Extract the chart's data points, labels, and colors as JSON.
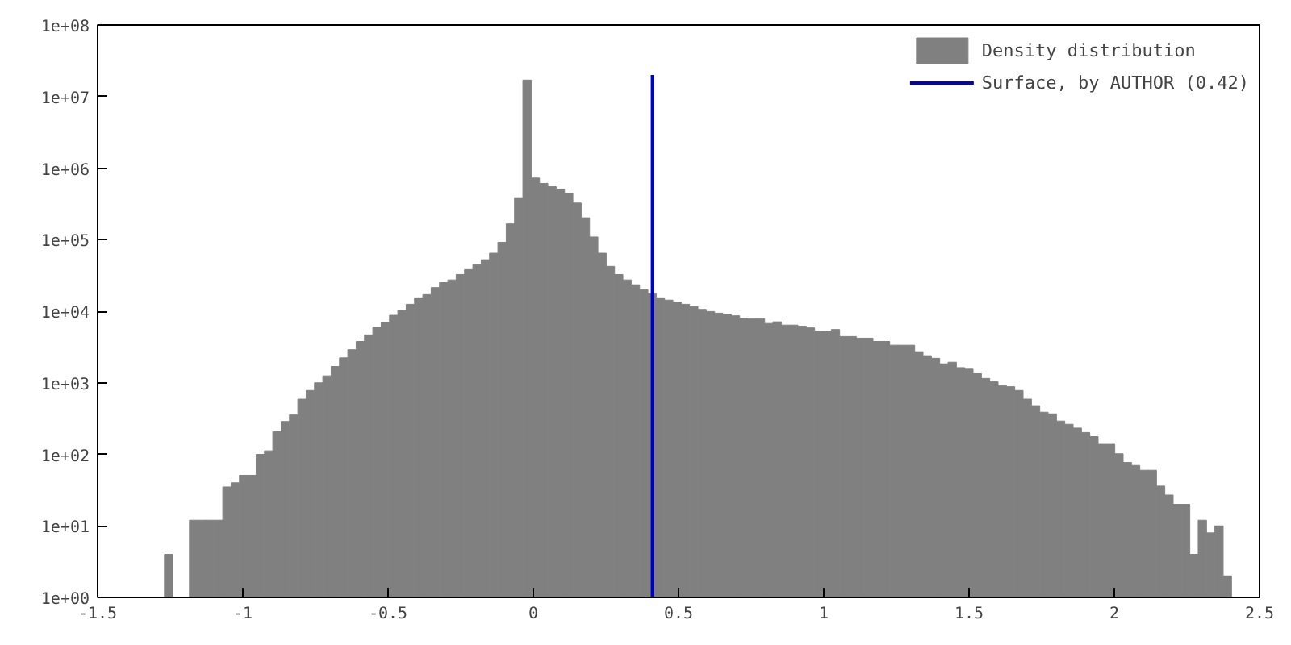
{
  "chart_data": {
    "type": "histogram",
    "bins": [
      -1.27,
      -1.2413,
      -1.2126,
      -1.1839,
      -1.1552,
      -1.1265,
      -1.0978,
      -1.0691,
      -1.0404,
      -1.0117,
      -0.983,
      -0.9543,
      -0.9256,
      -0.8969,
      -0.8682,
      -0.8395,
      -0.8108,
      -0.7821,
      -0.7534,
      -0.7247,
      -0.696,
      -0.6673,
      -0.6386,
      -0.6099,
      -0.5812,
      -0.5525,
      -0.5238,
      -0.4951,
      -0.4664,
      -0.4377,
      -0.409,
      -0.3803,
      -0.3516,
      -0.3229,
      -0.2942,
      -0.2655,
      -0.2368,
      -0.2081,
      -0.1794,
      -0.1507,
      -0.122,
      -0.0933,
      -0.0646,
      -0.0359,
      -0.0072,
      0.0215,
      0.0502,
      0.0789,
      0.1076,
      0.1363,
      0.165,
      0.1937,
      0.2224,
      0.2511,
      0.2798,
      0.3085,
      0.3372,
      0.3659,
      0.3946,
      0.4233,
      0.452,
      0.4807,
      0.5094,
      0.5381,
      0.5668,
      0.5955,
      0.6242,
      0.6529,
      0.6816,
      0.7103,
      0.739,
      0.7677,
      0.7964,
      0.8251,
      0.8538,
      0.8825,
      0.9112,
      0.9399,
      0.9686,
      0.9973,
      1.026,
      1.0547,
      1.0834,
      1.1121,
      1.1408,
      1.1695,
      1.1982,
      1.2269,
      1.2556,
      1.2843,
      1.313,
      1.3417,
      1.3704,
      1.3991,
      1.4278,
      1.4565,
      1.4852,
      1.5139,
      1.5426,
      1.5713,
      1.6,
      1.6287,
      1.6574,
      1.6861,
      1.7148,
      1.7435,
      1.7722,
      1.8009,
      1.8296,
      1.8583,
      1.887,
      1.9157,
      1.9444,
      1.9731,
      2.0018,
      2.0305,
      2.0592,
      2.0879,
      2.1166,
      2.1453,
      2.174,
      2.2027,
      2.2314,
      2.2601,
      2.2888,
      2.3175,
      2.3462,
      2.3749,
      2.4036
    ],
    "series": [
      {
        "name": "Density distribution",
        "color": "#808080",
        "values": [
          4,
          null,
          null,
          12,
          12,
          12,
          12,
          35,
          40,
          51,
          51,
          100,
          112,
          207,
          288,
          355,
          591,
          781,
          1000,
          1250,
          1690,
          2230,
          2900,
          3780,
          4670,
          5970,
          7000,
          8770,
          10300,
          12500,
          15400,
          17100,
          21400,
          25100,
          27400,
          32600,
          38200,
          44700,
          52400,
          64700,
          91900,
          166000,
          386000,
          17000000.0,
          726000,
          610000,
          549000,
          510000,
          445000,
          325000,
          202000,
          109000,
          64700,
          42400,
          32600,
          27400,
          23400,
          20000,
          17600,
          15400,
          14300,
          13400,
          12500,
          11600,
          10600,
          9900,
          9400,
          9100,
          8630,
          8020,
          7890,
          7890,
          6740,
          7110,
          6400,
          6400,
          6170,
          5850,
          5260,
          5260,
          5550,
          4430,
          4430,
          4200,
          4200,
          3780,
          3780,
          3350,
          3350,
          3350,
          2720,
          2390,
          2200,
          1840,
          1940,
          1630,
          1550,
          1340,
          1150,
          1030,
          915,
          881,
          781,
          591,
          479,
          388,
          368,
          292,
          263,
          233,
          202,
          177,
          138,
          138,
          102,
          77,
          70,
          60,
          60,
          36,
          27,
          20,
          20,
          4,
          12,
          8,
          10,
          2
        ]
      },
      {
        "type": "line",
        "name": "Surface, by AUTHOR (0.42)",
        "color": "#0000cc",
        "x": [
          0.41,
          0.41
        ],
        "values": [
          1,
          20000000
        ]
      }
    ],
    "log": "y",
    "xlim": [
      -1.5,
      2.5
    ],
    "xticks": [
      -1.5,
      -1,
      -0.5,
      0,
      0.5,
      1,
      1.5,
      2,
      2.5
    ],
    "ylim": [
      1,
      100000000
    ],
    "yticks": [
      {
        "value": 1,
        "label": "1e+00"
      },
      {
        "value": 10,
        "label": "1e+01"
      },
      {
        "value": 100,
        "label": "1e+02"
      },
      {
        "value": 1000,
        "label": "1e+03"
      },
      {
        "value": 10000,
        "label": "1e+04"
      },
      {
        "value": 100000,
        "label": "1e+05"
      },
      {
        "value": 1000000,
        "label": "1e+06"
      },
      {
        "value": 10000000,
        "label": "1e+07"
      },
      {
        "value": 100000000,
        "label": "1e+08"
      }
    ],
    "legend": "top right",
    "grid": false
  }
}
